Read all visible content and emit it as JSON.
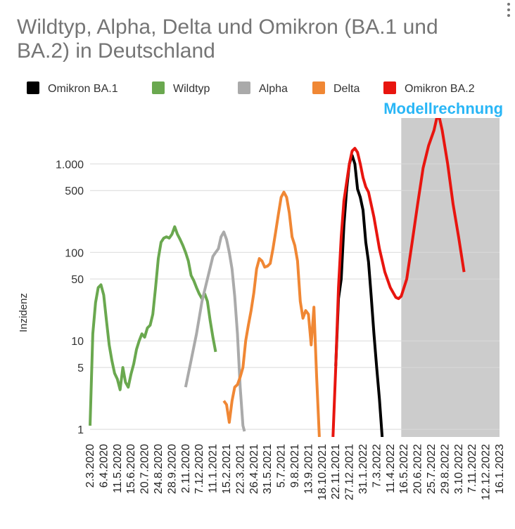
{
  "chart_data": {
    "type": "line",
    "title": "Wildtyp, Alpha, Delta und Omikron (BA.1 und BA.2) in Deutschland",
    "ylabel": "Inzidenz",
    "xlabel": "",
    "yscale": "log",
    "ylim": [
      0.82,
      3300
    ],
    "y_ticks": [
      {
        "value": 1,
        "label": "1"
      },
      {
        "value": 5,
        "label": "5"
      },
      {
        "value": 10,
        "label": "10"
      },
      {
        "value": 50,
        "label": "50"
      },
      {
        "value": 100,
        "label": "100"
      },
      {
        "value": 500,
        "label": "500"
      },
      {
        "value": 1000,
        "label": "1.000"
      }
    ],
    "x_tick_labels": [
      "2.3.2020",
      "6.4.2020",
      "11.5.2020",
      "15.6.2020",
      "20.7.2020",
      "24.8.2020",
      "28.9.2020",
      "2.11.2020",
      "7.12.2020",
      "11.1.2021",
      "15.2.2021",
      "22.3.2021",
      "26.4.2021",
      "31.5.2021",
      "5.7.2021",
      "9.8.2021",
      "13.9.2021",
      "18.10.2021",
      "22.11.2021",
      "27.12.2021",
      "31.1.2022",
      "7.3.2022",
      "11.4.2022",
      "16.5.2022",
      "20.6.2022",
      "25.7.2022",
      "29.8.2022",
      "3.10.2022",
      "7.11.2022",
      "12.12.2022",
      "16.1.2023"
    ],
    "grid": true,
    "legend_position": "top",
    "shaded_region": {
      "label": "Modellrechnung",
      "color": "#cccccc",
      "label_color": "#29b6f6",
      "x_start": "9.5.2022",
      "x_end": "16.1.2023"
    },
    "series": [
      {
        "name": "Omikron BA.1",
        "color": "#000000",
        "points": [
          [
            "22.11.2021",
            5.2
          ],
          [
            "29.11.2021",
            30
          ],
          [
            "6.12.2021",
            50
          ],
          [
            "13.12.2021",
            200
          ],
          [
            "20.12.2021",
            520
          ],
          [
            "27.12.2021",
            1000
          ],
          [
            "3.1.2022",
            1250
          ],
          [
            "10.1.2022",
            1000
          ],
          [
            "17.1.2022",
            520
          ],
          [
            "24.1.2022",
            420
          ],
          [
            "31.1.2022",
            300
          ],
          [
            "7.2.2022",
            130
          ],
          [
            "14.2.2022",
            78
          ],
          [
            "21.2.2022",
            32
          ],
          [
            "28.2.2022",
            12
          ],
          [
            "7.3.2022",
            5
          ],
          [
            "14.3.2022",
            2.2
          ],
          [
            "21.3.2022",
            0.82
          ]
        ]
      },
      {
        "name": "Wildtyp",
        "color": "#6aa84f",
        "points": [
          [
            "2.3.2020",
            1.1
          ],
          [
            "9.3.2020",
            12
          ],
          [
            "16.3.2020",
            27
          ],
          [
            "23.3.2020",
            40
          ],
          [
            "30.3.2020",
            43
          ],
          [
            "6.4.2020",
            33
          ],
          [
            "13.4.2020",
            17
          ],
          [
            "20.4.2020",
            9
          ],
          [
            "27.4.2020",
            6
          ],
          [
            "4.5.2020",
            4.3
          ],
          [
            "11.5.2020",
            3.7
          ],
          [
            "18.5.2020",
            2.8
          ],
          [
            "25.5.2020",
            5
          ],
          [
            "1.6.2020",
            3.4
          ],
          [
            "8.6.2020",
            3
          ],
          [
            "15.6.2020",
            4.2
          ],
          [
            "22.6.2020",
            5.5
          ],
          [
            "29.6.2020",
            8
          ],
          [
            "6.7.2020",
            10
          ],
          [
            "13.7.2020",
            12
          ],
          [
            "20.7.2020",
            11
          ],
          [
            "27.7.2020",
            14
          ],
          [
            "3.8.2020",
            15
          ],
          [
            "10.8.2020",
            20
          ],
          [
            "17.8.2020",
            40
          ],
          [
            "24.8.2020",
            85
          ],
          [
            "31.8.2020",
            130
          ],
          [
            "7.9.2020",
            145
          ],
          [
            "14.9.2020",
            150
          ],
          [
            "21.9.2020",
            145
          ],
          [
            "28.9.2020",
            160
          ],
          [
            "5.10.2020",
            195
          ],
          [
            "12.10.2020",
            160
          ],
          [
            "19.10.2020",
            140
          ],
          [
            "26.10.2020",
            120
          ],
          [
            "2.11.2020",
            100
          ],
          [
            "9.11.2020",
            80
          ],
          [
            "16.11.2020",
            55
          ],
          [
            "23.11.2020",
            48
          ],
          [
            "30.11.2020",
            40
          ],
          [
            "7.12.2020",
            34
          ],
          [
            "14.12.2020",
            30
          ],
          [
            "21.12.2020",
            34
          ],
          [
            "28.12.2020",
            28
          ],
          [
            "4.1.2021",
            17
          ],
          [
            "11.1.2021",
            11
          ],
          [
            "18.1.2021",
            7.5
          ]
        ]
      },
      {
        "name": "Alpha",
        "color": "#aaaaaa",
        "points": [
          [
            "2.11.2020",
            3
          ],
          [
            "16.11.2020",
            6
          ],
          [
            "30.11.2020",
            12
          ],
          [
            "14.12.2020",
            28
          ],
          [
            "28.12.2020",
            50
          ],
          [
            "11.1.2021",
            90
          ],
          [
            "18.1.2021",
            100
          ],
          [
            "25.1.2021",
            110
          ],
          [
            "1.2.2021",
            150
          ],
          [
            "8.2.2021",
            170
          ],
          [
            "15.2.2021",
            140
          ],
          [
            "22.2.2021",
            100
          ],
          [
            "1.3.2021",
            65
          ],
          [
            "8.3.2021",
            32
          ],
          [
            "15.3.2021",
            12
          ],
          [
            "22.3.2021",
            3
          ],
          [
            "29.3.2021",
            1.1
          ],
          [
            "2.4.2021",
            0.95
          ]
        ]
      },
      {
        "name": "Delta",
        "color": "#f08734",
        "points": [
          [
            "8.2.2021",
            2.1
          ],
          [
            "15.2.2021",
            1.9
          ],
          [
            "22.2.2021",
            1.2
          ],
          [
            "1.3.2021",
            2.1
          ],
          [
            "8.3.2021",
            3
          ],
          [
            "15.3.2021",
            3.2
          ],
          [
            "22.3.2021",
            3.9
          ],
          [
            "29.3.2021",
            5
          ],
          [
            "5.4.2021",
            10
          ],
          [
            "12.4.2021",
            15
          ],
          [
            "19.4.2021",
            22
          ],
          [
            "26.4.2021",
            35
          ],
          [
            "3.5.2021",
            65
          ],
          [
            "10.5.2021",
            85
          ],
          [
            "17.5.2021",
            80
          ],
          [
            "24.5.2021",
            68
          ],
          [
            "31.5.2021",
            70
          ],
          [
            "7.6.2021",
            75
          ],
          [
            "14.6.2021",
            110
          ],
          [
            "21.6.2021",
            170
          ],
          [
            "28.6.2021",
            270
          ],
          [
            "5.7.2021",
            420
          ],
          [
            "12.7.2021",
            480
          ],
          [
            "19.7.2021",
            420
          ],
          [
            "26.7.2021",
            280
          ],
          [
            "2.8.2021",
            150
          ],
          [
            "9.8.2021",
            120
          ],
          [
            "16.8.2021",
            80
          ],
          [
            "23.8.2021",
            28
          ],
          [
            "30.8.2021",
            18
          ],
          [
            "6.9.2021",
            22
          ],
          [
            "13.9.2021",
            20
          ],
          [
            "20.9.2021",
            9
          ],
          [
            "27.9.2021",
            24
          ],
          [
            "4.10.2021",
            4
          ],
          [
            "11.10.2021",
            0.82
          ]
        ]
      },
      {
        "name": "Omikron BA.2",
        "color": "#e8150f",
        "points": [
          [
            "15.11.2021",
            0.82
          ],
          [
            "22.11.2021",
            5
          ],
          [
            "29.11.2021",
            40
          ],
          [
            "6.12.2021",
            150
          ],
          [
            "13.12.2021",
            380
          ],
          [
            "20.12.2021",
            620
          ],
          [
            "27.12.2021",
            1000
          ],
          [
            "3.1.2022",
            1400
          ],
          [
            "10.1.2022",
            1500
          ],
          [
            "17.1.2022",
            1350
          ],
          [
            "24.1.2022",
            1000
          ],
          [
            "31.1.2022",
            700
          ],
          [
            "7.2.2022",
            550
          ],
          [
            "14.2.2022",
            480
          ],
          [
            "28.2.2022",
            250
          ],
          [
            "14.3.2022",
            110
          ],
          [
            "28.3.2022",
            60
          ],
          [
            "11.4.2022",
            40
          ],
          [
            "25.4.2022",
            31
          ],
          [
            "2.5.2022",
            30
          ],
          [
            "9.5.2022",
            32
          ],
          [
            "23.5.2022",
            50
          ],
          [
            "6.6.2022",
            130
          ],
          [
            "20.6.2022",
            350
          ],
          [
            "4.7.2022",
            900
          ],
          [
            "18.7.2022",
            1600
          ],
          [
            "1.8.2022",
            2400
          ],
          [
            "8.8.2022",
            3300
          ],
          [
            "15.8.2022",
            3300
          ],
          [
            "22.8.2022",
            2400
          ],
          [
            "5.9.2022",
            1000
          ],
          [
            "19.9.2022",
            350
          ],
          [
            "3.10.2022",
            150
          ],
          [
            "17.10.2022",
            60
          ]
        ]
      }
    ]
  }
}
